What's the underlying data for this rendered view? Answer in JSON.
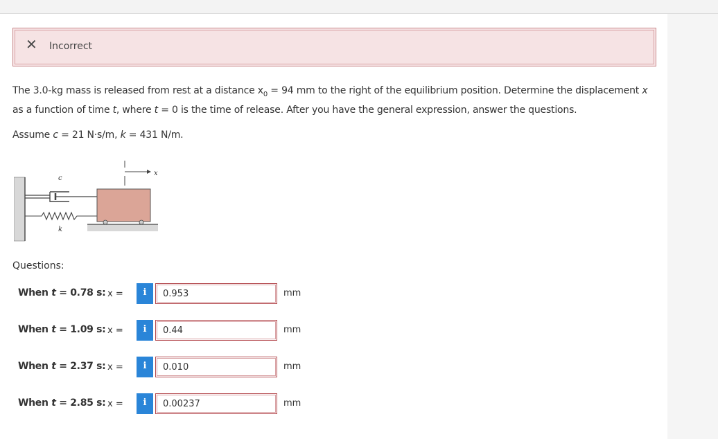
{
  "alert": {
    "icon": "close-icon",
    "text": "Incorrect"
  },
  "problem": {
    "intro": "The 3.0-kg mass is released from rest at a distance ",
    "x0_symbol": "x",
    "x0_sub": "0",
    "x0_value": " = 94 mm to the right of the equilibrium position. Determine the displacement ",
    "x_var": "x",
    "as_fn": " as a function of time ",
    "t_var": "t",
    "where": ", where ",
    "t_var2": "t",
    "rest": " = 0 is the time of release. After you have the general expression, answer the questions."
  },
  "assume": {
    "prefix": "Assume ",
    "c_var": "c",
    "c_value": " = 21 N·s/m, ",
    "k_var": "k",
    "k_value": " = 431 N/m."
  },
  "figure": {
    "label_c": "c",
    "label_k": "k",
    "label_x": "x"
  },
  "questions_label": "Questions:",
  "questions": [
    {
      "label_prefix": "When ",
      "t": "t",
      "label_rest": " = 0.78 s:",
      "x_label": "x =",
      "value": "0.953",
      "unit": "mm"
    },
    {
      "label_prefix": "When ",
      "t": "t",
      "label_rest": " = 1.09 s:",
      "x_label": "x =",
      "value": "0.44",
      "unit": "mm"
    },
    {
      "label_prefix": "When ",
      "t": "t",
      "label_rest": " = 2.37 s:",
      "x_label": "x =",
      "value": "0.010",
      "unit": "mm"
    },
    {
      "label_prefix": "When ",
      "t": "t",
      "label_rest": " = 2.85 s:",
      "x_label": "x =",
      "value": "0.00237",
      "unit": "mm"
    }
  ],
  "info_glyph": "i",
  "colors": {
    "alert_bg": "#f6e3e4",
    "alert_border": "#c9898c",
    "info_button": "#2a85d8",
    "input_border": "#b44a4f",
    "mass_fill": "#dba597"
  }
}
